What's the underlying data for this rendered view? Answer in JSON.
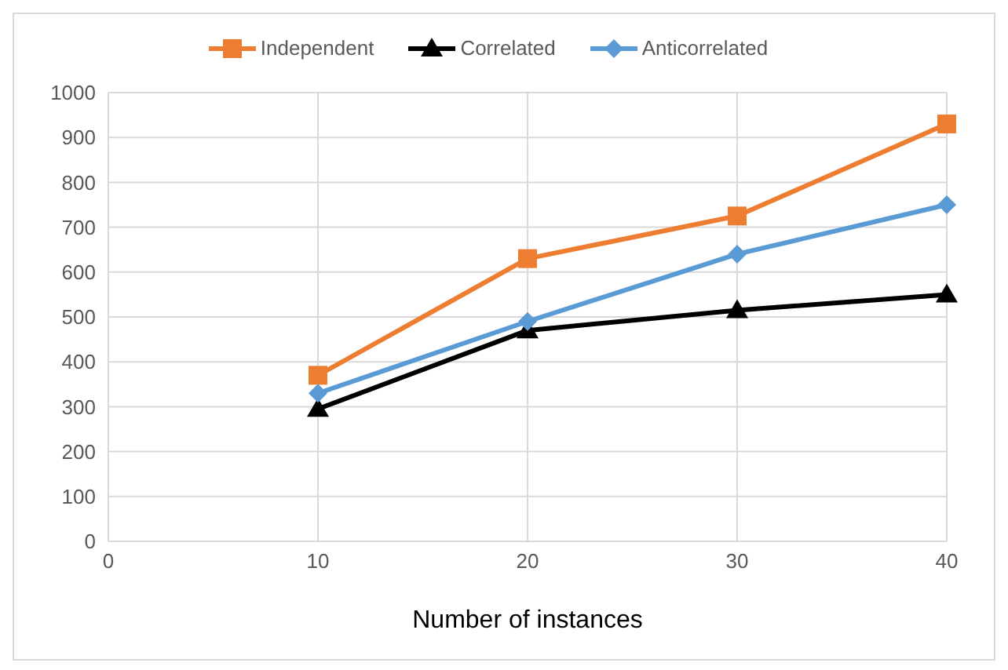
{
  "chart_data": {
    "type": "line",
    "xlabel": "Number of instances",
    "x": [
      10,
      20,
      30,
      40
    ],
    "series": [
      {
        "name": "Independent",
        "color": "#ed7d31",
        "marker": "square",
        "values": [
          370,
          630,
          725,
          930
        ]
      },
      {
        "name": "Correlated",
        "color": "#000000",
        "marker": "triangle",
        "values": [
          295,
          470,
          515,
          550
        ]
      },
      {
        "name": "Anticorrelated",
        "color": "#5b9bd5",
        "marker": "diamond",
        "values": [
          330,
          490,
          640,
          750
        ]
      }
    ],
    "xlim": [
      0,
      40
    ],
    "xticks": [
      0,
      10,
      20,
      30,
      40
    ],
    "ylim": [
      0,
      1000
    ],
    "yticks": [
      0,
      100,
      200,
      300,
      400,
      500,
      600,
      700,
      800,
      900,
      1000
    ],
    "grid": true,
    "legend": "top",
    "line_style": "solid"
  }
}
